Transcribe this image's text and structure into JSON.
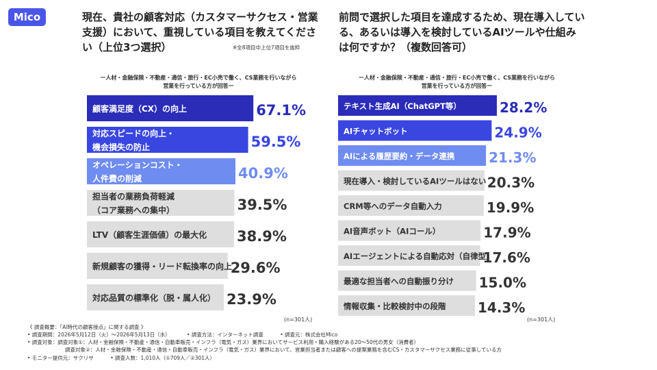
{
  "brand": {
    "logo_text": "Mico",
    "color": "#4a55e8"
  },
  "left": {
    "question": "現在、貴社の顧客対応（カスタマーサクセス・営業支援）において、重視している項目を教えてください（上位3つ選択）",
    "note": "※全8項目中上位7項目を抜粋",
    "subtitle_line1": "ー人材・金融保険・不動産・通信・旅行・EC小売で働く、CS業務を行いながら",
    "subtitle_line2": "営業を行っている方が回答ー",
    "n": "(n=301人)"
  },
  "right": {
    "question": "前問で選択した項目を達成するため、現在導入している、あるいは導入を検討しているAIツールや仕組みは何ですか？（複数回答可）",
    "subtitle_line1": "ー人材・金融保険・不動産・通信・旅行・EC小売で働く、CS業務を行いながら",
    "subtitle_line2": "営業を行っている方が回答ー",
    "n": "(n=301人)"
  },
  "chart_data": [
    {
      "type": "bar",
      "orientation": "horizontal",
      "unit": "%",
      "xlim": [
        0,
        100
      ],
      "categories": [
        [
          "顧客満足度（CX）の向上"
        ],
        [
          "対応スピードの向上・",
          "機会損失の防止"
        ],
        [
          "オペレーションコスト・",
          "人件費の削減"
        ],
        [
          "担当者の業務負荷軽減",
          "（コア業務への集中）"
        ],
        [
          "LTV（顧客生涯価値）の最大化"
        ],
        [
          "新規顧客の獲得・リード転換率の向上"
        ],
        [
          "対応品質の標準化（脱・属人化）"
        ]
      ],
      "values": [
        67.1,
        59.5,
        40.9,
        39.5,
        38.9,
        29.6,
        23.9
      ],
      "value_labels": [
        "67.1%",
        "59.5%",
        "40.9%",
        "39.5%",
        "38.9%",
        "29.6%",
        "23.9%"
      ],
      "bar_colors": [
        "#2b2cb8",
        "#3a46e0",
        "#6f8cf0",
        "#dedede",
        "#dedede",
        "#dedede",
        "#dedede"
      ],
      "value_colors": [
        "#2b2cb8",
        "#3a46e0",
        "#6f8cf0",
        "#333333",
        "#333333",
        "#333333",
        "#333333"
      ]
    },
    {
      "type": "bar",
      "orientation": "horizontal",
      "unit": "%",
      "xlim": [
        0,
        100
      ],
      "categories": [
        [
          "テキスト生成AI（ChatGPT等）"
        ],
        [
          "AIチャットボット"
        ],
        [
          "AIによる履歴要約・データ連携"
        ],
        [
          "現在導入・検討しているAIツールはない"
        ],
        [
          "CRM等へのデータ自動入力"
        ],
        [
          "AI音声ボット（AIコール）"
        ],
        [
          "AIエージェントによる自動応対（自律型）"
        ],
        [
          "最適な担当者への自動振り分け"
        ],
        [
          "情報収集・比較検討中の段階"
        ]
      ],
      "values": [
        28.2,
        24.9,
        21.3,
        20.3,
        19.9,
        17.9,
        17.6,
        15.0,
        14.3
      ],
      "value_labels": [
        "28.2%",
        "24.9%",
        "21.3%",
        "20.3%",
        "19.9%",
        "17.9%",
        "17.6%",
        "15.0%",
        "14.3%"
      ],
      "bar_colors": [
        "#2b2cb8",
        "#3a46e0",
        "#6f8cf0",
        "#dedede",
        "#dedede",
        "#dedede",
        "#dedede",
        "#dedede",
        "#dedede"
      ],
      "value_colors": [
        "#2b2cb8",
        "#3a46e0",
        "#6f8cf0",
        "#333333",
        "#333333",
        "#333333",
        "#333333",
        "#333333",
        "#333333"
      ]
    }
  ],
  "footer": {
    "title": "《 調査概要：「AI時代の顧客接点」に関する調査 》",
    "period": "• 調査期間：2026年5月12日（火）〜2026年5月13日（水）",
    "method": "• 調査方法：インターネット調査",
    "source": "• 調査元：株式会社Mico",
    "target1": "• 調査対象：調査対象①：人材・金融保険・不動産・通信・自動車販売・インフラ（電気・ガス）業界においてサービス利用・購入経験がある20〜50代の男女（消費者）",
    "target2": "調査対象②：人材・金融保険・不動産・通信・自動車販売・インフラ（電気・ガス）業界において、営業担当者または顧客への提案業務を含むCS・カスタマーサクセス業務に従事している方",
    "monitor": "• モニター提供元：サクリサ",
    "count": "• 調査人数：1,010人（①709人／②301人）"
  }
}
